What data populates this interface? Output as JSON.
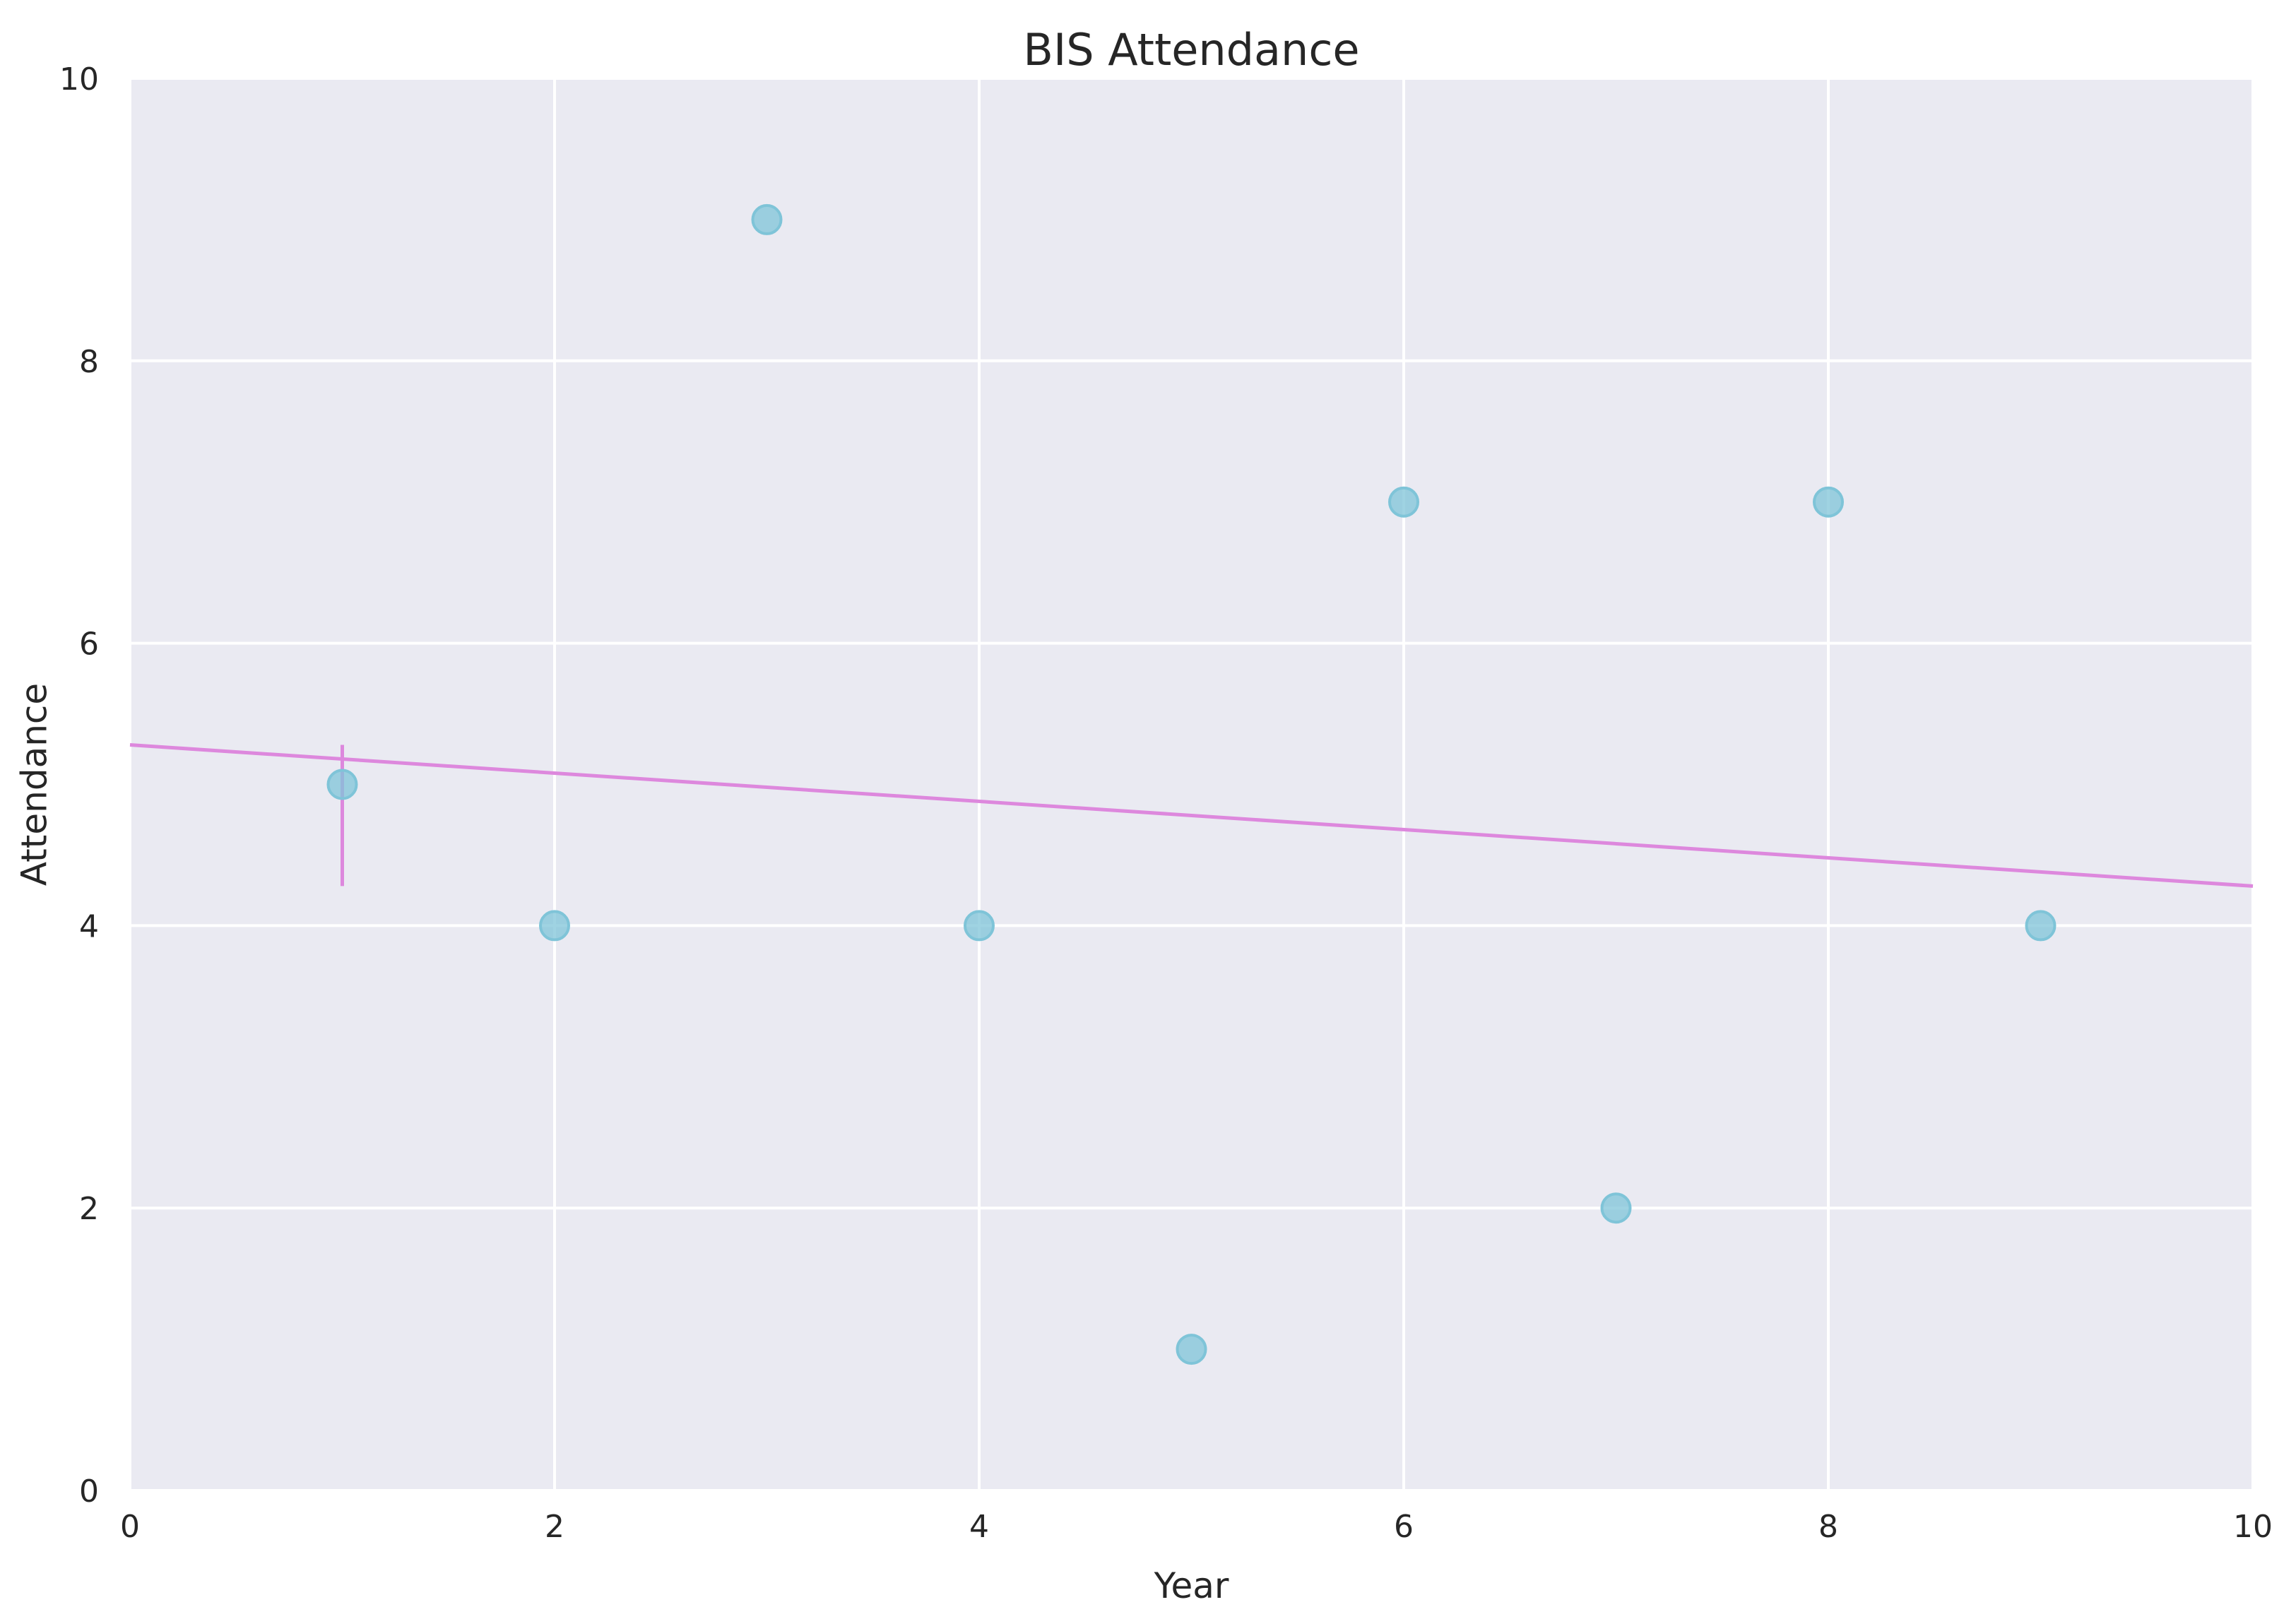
{
  "chart_data": {
    "type": "scatter",
    "title": "BIS Attendance",
    "xlabel": "Year",
    "ylabel": "Attendance",
    "xlim": [
      0,
      10
    ],
    "ylim": [
      0,
      10
    ],
    "xticks": [
      "0",
      "2",
      "4",
      "6",
      "8",
      "10"
    ],
    "yticks": [
      "0",
      "2",
      "4",
      "6",
      "8",
      "10"
    ],
    "grid": true,
    "series": [
      {
        "points": [
          {
            "x": 1,
            "y": 5
          },
          {
            "x": 2,
            "y": 4
          },
          {
            "x": 3,
            "y": 9
          },
          {
            "x": 4,
            "y": 4
          },
          {
            "x": 5,
            "y": 1
          },
          {
            "x": 6,
            "y": 7
          },
          {
            "x": 7,
            "y": 2
          },
          {
            "x": 8,
            "y": 7
          },
          {
            "x": 9,
            "y": 4
          }
        ],
        "color": "#7fc4d8"
      }
    ],
    "trend_line": {
      "x": [
        0,
        10
      ],
      "y": [
        5.28,
        4.28
      ],
      "color": "#dd88dd"
    },
    "residual_marker": {
      "x": 1,
      "y_from": 4.28,
      "y_to": 5.28,
      "color": "#dd88dd"
    },
    "colors": {
      "plot_background": "#eaeaf2",
      "grid": "#ffffff",
      "text": "#262626"
    }
  }
}
